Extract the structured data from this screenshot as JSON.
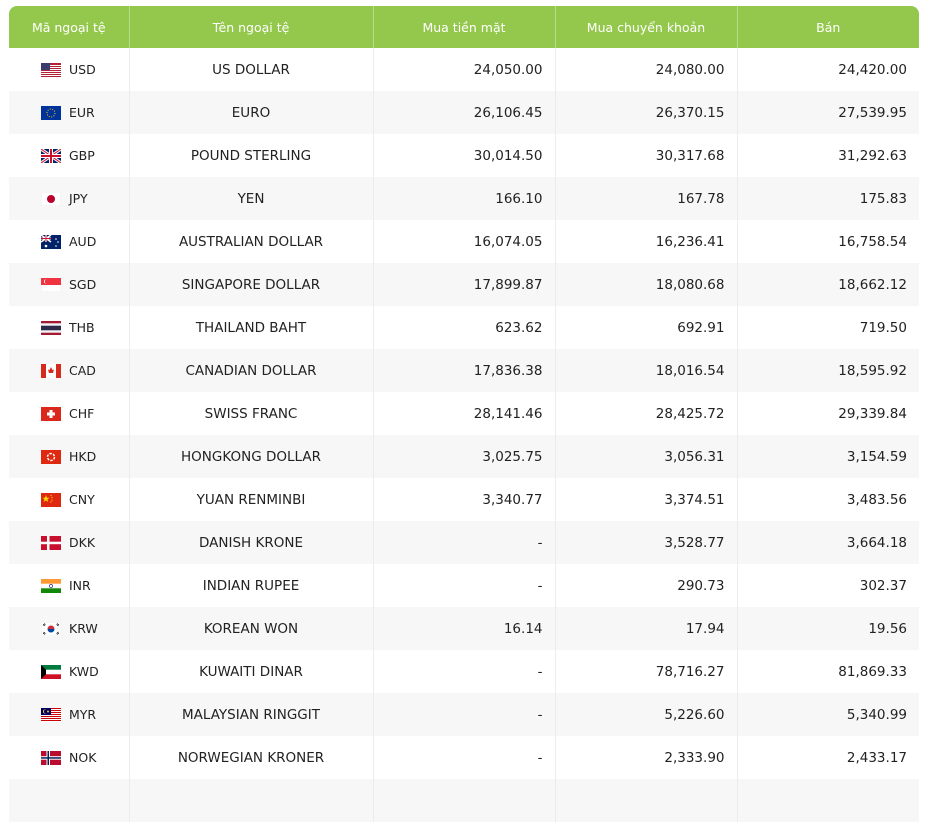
{
  "table": {
    "header": [
      "Mã ngoại tệ",
      "Tên ngoại tệ",
      "Mua tiền mặt",
      "Mua chuyển khoản",
      "Bán"
    ],
    "rows": [
      [
        "USD",
        "US DOLLAR",
        "24,050.00",
        "24,080.00",
        "24,420.00"
      ],
      [
        "EUR",
        "EURO",
        "26,106.45",
        "26,370.15",
        "27,539.95"
      ],
      [
        "GBP",
        "POUND STERLING",
        "30,014.50",
        "30,317.68",
        "31,292.63"
      ],
      [
        "JPY",
        "YEN",
        "166.10",
        "167.78",
        "175.83"
      ],
      [
        "AUD",
        "AUSTRALIAN DOLLAR",
        "16,074.05",
        "16,236.41",
        "16,758.54"
      ],
      [
        "SGD",
        "SINGAPORE DOLLAR",
        "17,899.87",
        "18,080.68",
        "18,662.12"
      ],
      [
        "THB",
        "THAILAND BAHT",
        "623.62",
        "692.91",
        "719.50"
      ],
      [
        "CAD",
        "CANADIAN DOLLAR",
        "17,836.38",
        "18,016.54",
        "18,595.92"
      ],
      [
        "CHF",
        "SWISS FRANC",
        "28,141.46",
        "28,425.72",
        "29,339.84"
      ],
      [
        "HKD",
        "HONGKONG DOLLAR",
        "3,025.75",
        "3,056.31",
        "3,154.59"
      ],
      [
        "CNY",
        "YUAN RENMINBI",
        "3,340.77",
        "3,374.51",
        "3,483.56"
      ],
      [
        "DKK",
        "DANISH KRONE",
        "-",
        "3,528.77",
        "3,664.18"
      ],
      [
        "INR",
        "INDIAN RUPEE",
        "-",
        "290.73",
        "302.37"
      ],
      [
        "KRW",
        "KOREAN WON",
        "16.14",
        "17.94",
        "19.56"
      ],
      [
        "KWD",
        "KUWAITI DINAR",
        "-",
        "78,716.27",
        "81,869.33"
      ],
      [
        "MYR",
        "MALAYSIAN RINGGIT",
        "-",
        "5,226.60",
        "5,340.99"
      ],
      [
        "NOK",
        "NORWEGIAN KRONER",
        "-",
        "2,333.90",
        "2,433.17"
      ]
    ]
  }
}
